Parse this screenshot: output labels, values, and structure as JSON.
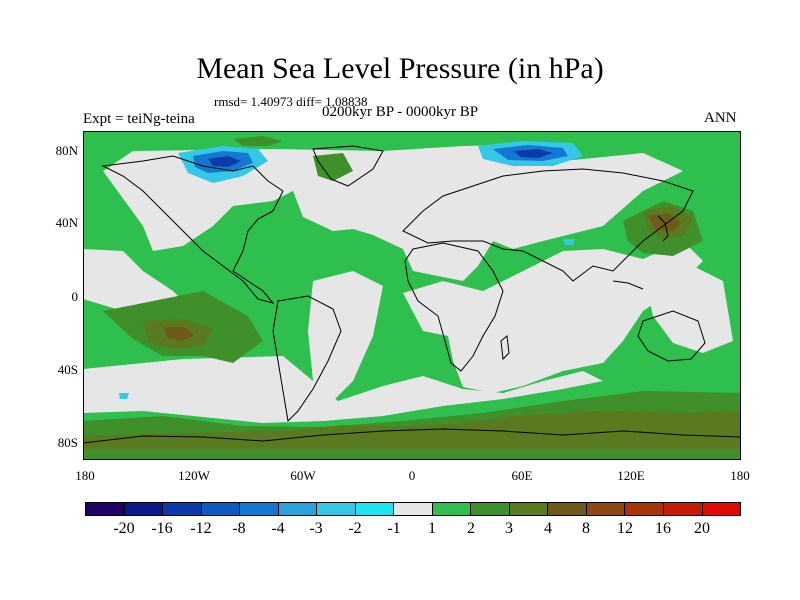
{
  "title": "Mean Sea Level Pressure (in hPa)",
  "stats": "rmsd= 1.40973 diff= 1.08838",
  "left_label": "Expt = teiNg-teina",
  "center_label": "0200kyr BP - 0000kyr BP",
  "right_label": "ANN",
  "y_axis_labels": [
    "80N",
    "40N",
    "0",
    "40S",
    "80S"
  ],
  "x_axis_labels": [
    "180",
    "120W",
    "60W",
    "0",
    "60E",
    "120E",
    "180"
  ],
  "colorbar": {
    "colors": [
      "#1e0066",
      "#0a1a8c",
      "#0c3aa8",
      "#0d5bc1",
      "#1378d2",
      "#2aa3dd",
      "#34c7e6",
      "#1ee4ef",
      "#e6e6e6",
      "#2fbf4f",
      "#3f8f2a",
      "#5a7a20",
      "#6e5a1a",
      "#8a4a12",
      "#a8340c",
      "#c41c08",
      "#e00c04"
    ],
    "labels": [
      "-20",
      "-16",
      "-12",
      "-8",
      "-4",
      "-3",
      "-2",
      "-1",
      "1",
      "2",
      "3",
      "4",
      "8",
      "12",
      "16",
      "20"
    ]
  },
  "map_colors": {
    "background": "#2fbf4f",
    "neutral": "#e6e6e6",
    "dark_green": "#3f8f2a",
    "olive": "#5a7a20",
    "brown": "#6e5a1a",
    "blue": "#1378d2",
    "dark_blue": "#0c3aa8",
    "cyan": "#34c7e6",
    "coastline": "#000000"
  }
}
